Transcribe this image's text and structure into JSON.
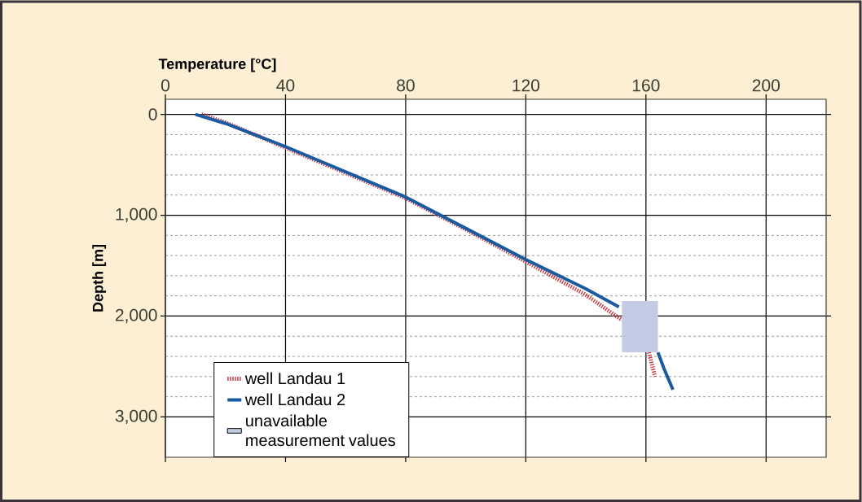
{
  "chart_data": {
    "type": "line",
    "xlabel": "Temperature [°C]",
    "ylabel": "Depth [m]",
    "xlim": [
      0,
      220
    ],
    "ylim": [
      3400,
      -150
    ],
    "xticks": [
      0,
      40,
      80,
      120,
      160,
      200
    ],
    "yticks": [
      0,
      {
        "value": 1000,
        "label": "1,000"
      },
      {
        "value": 2000,
        "label": "2,000"
      },
      {
        "value": 3000,
        "label": "3,000"
      }
    ],
    "grid": true,
    "legend": "bottom left",
    "series": [
      {
        "name": "well Landau 1",
        "color": "#c8373f",
        "line_style": "dotted",
        "x": [
          12,
          20,
          40,
          60,
          80,
          100,
          120,
          140,
          152,
          159,
          161,
          163
        ],
        "values": [
          0,
          80,
          330,
          580,
          830,
          1140,
          1460,
          1790,
          2040,
          null,
          2360,
          2600
        ]
      },
      {
        "name": "well Landau 2",
        "color": "#1a5aa0",
        "line_style": "solid",
        "x": [
          10,
          20,
          40,
          60,
          80,
          100,
          120,
          140,
          151,
          157,
          164,
          166,
          169
        ],
        "values": [
          0,
          90,
          320,
          570,
          820,
          1130,
          1440,
          1730,
          1910,
          null,
          2360,
          2520,
          2730
        ]
      },
      {
        "name": "unavailable measurement values",
        "type": "line",
        "color": "#c3cbe5",
        "x": [
          152,
          164
        ],
        "values": [
          null,
          null
        ],
        "lower": [
          1850,
          1850
        ],
        "upper": [
          2360,
          2360
        ]
      }
    ]
  }
}
